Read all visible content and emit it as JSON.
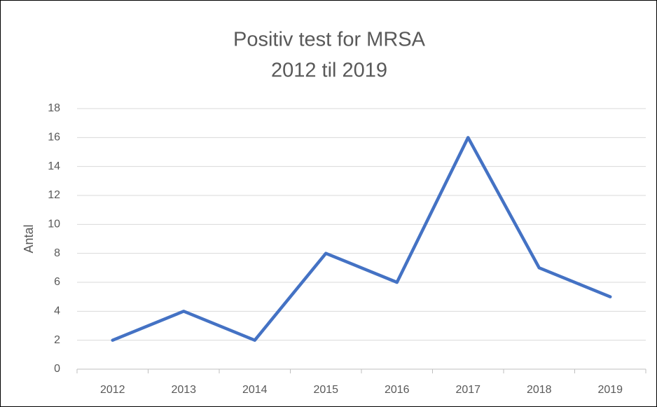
{
  "chart_data": {
    "type": "line",
    "title": "Positiv test for MRSA",
    "subtitle": "2012 til 2019",
    "y_label": "Antal",
    "categories": [
      "2012",
      "2013",
      "2014",
      "2015",
      "2016",
      "2017",
      "2018",
      "2019"
    ],
    "series": [
      {
        "name": "Antal",
        "color": "#4472c4",
        "values": [
          2,
          4,
          2,
          8,
          6,
          16,
          7,
          5
        ]
      }
    ],
    "ylim": [
      0,
      18
    ],
    "yticks": [
      0,
      2,
      4,
      6,
      8,
      10,
      12,
      14,
      16,
      18
    ],
    "grid": true,
    "legend": false
  }
}
